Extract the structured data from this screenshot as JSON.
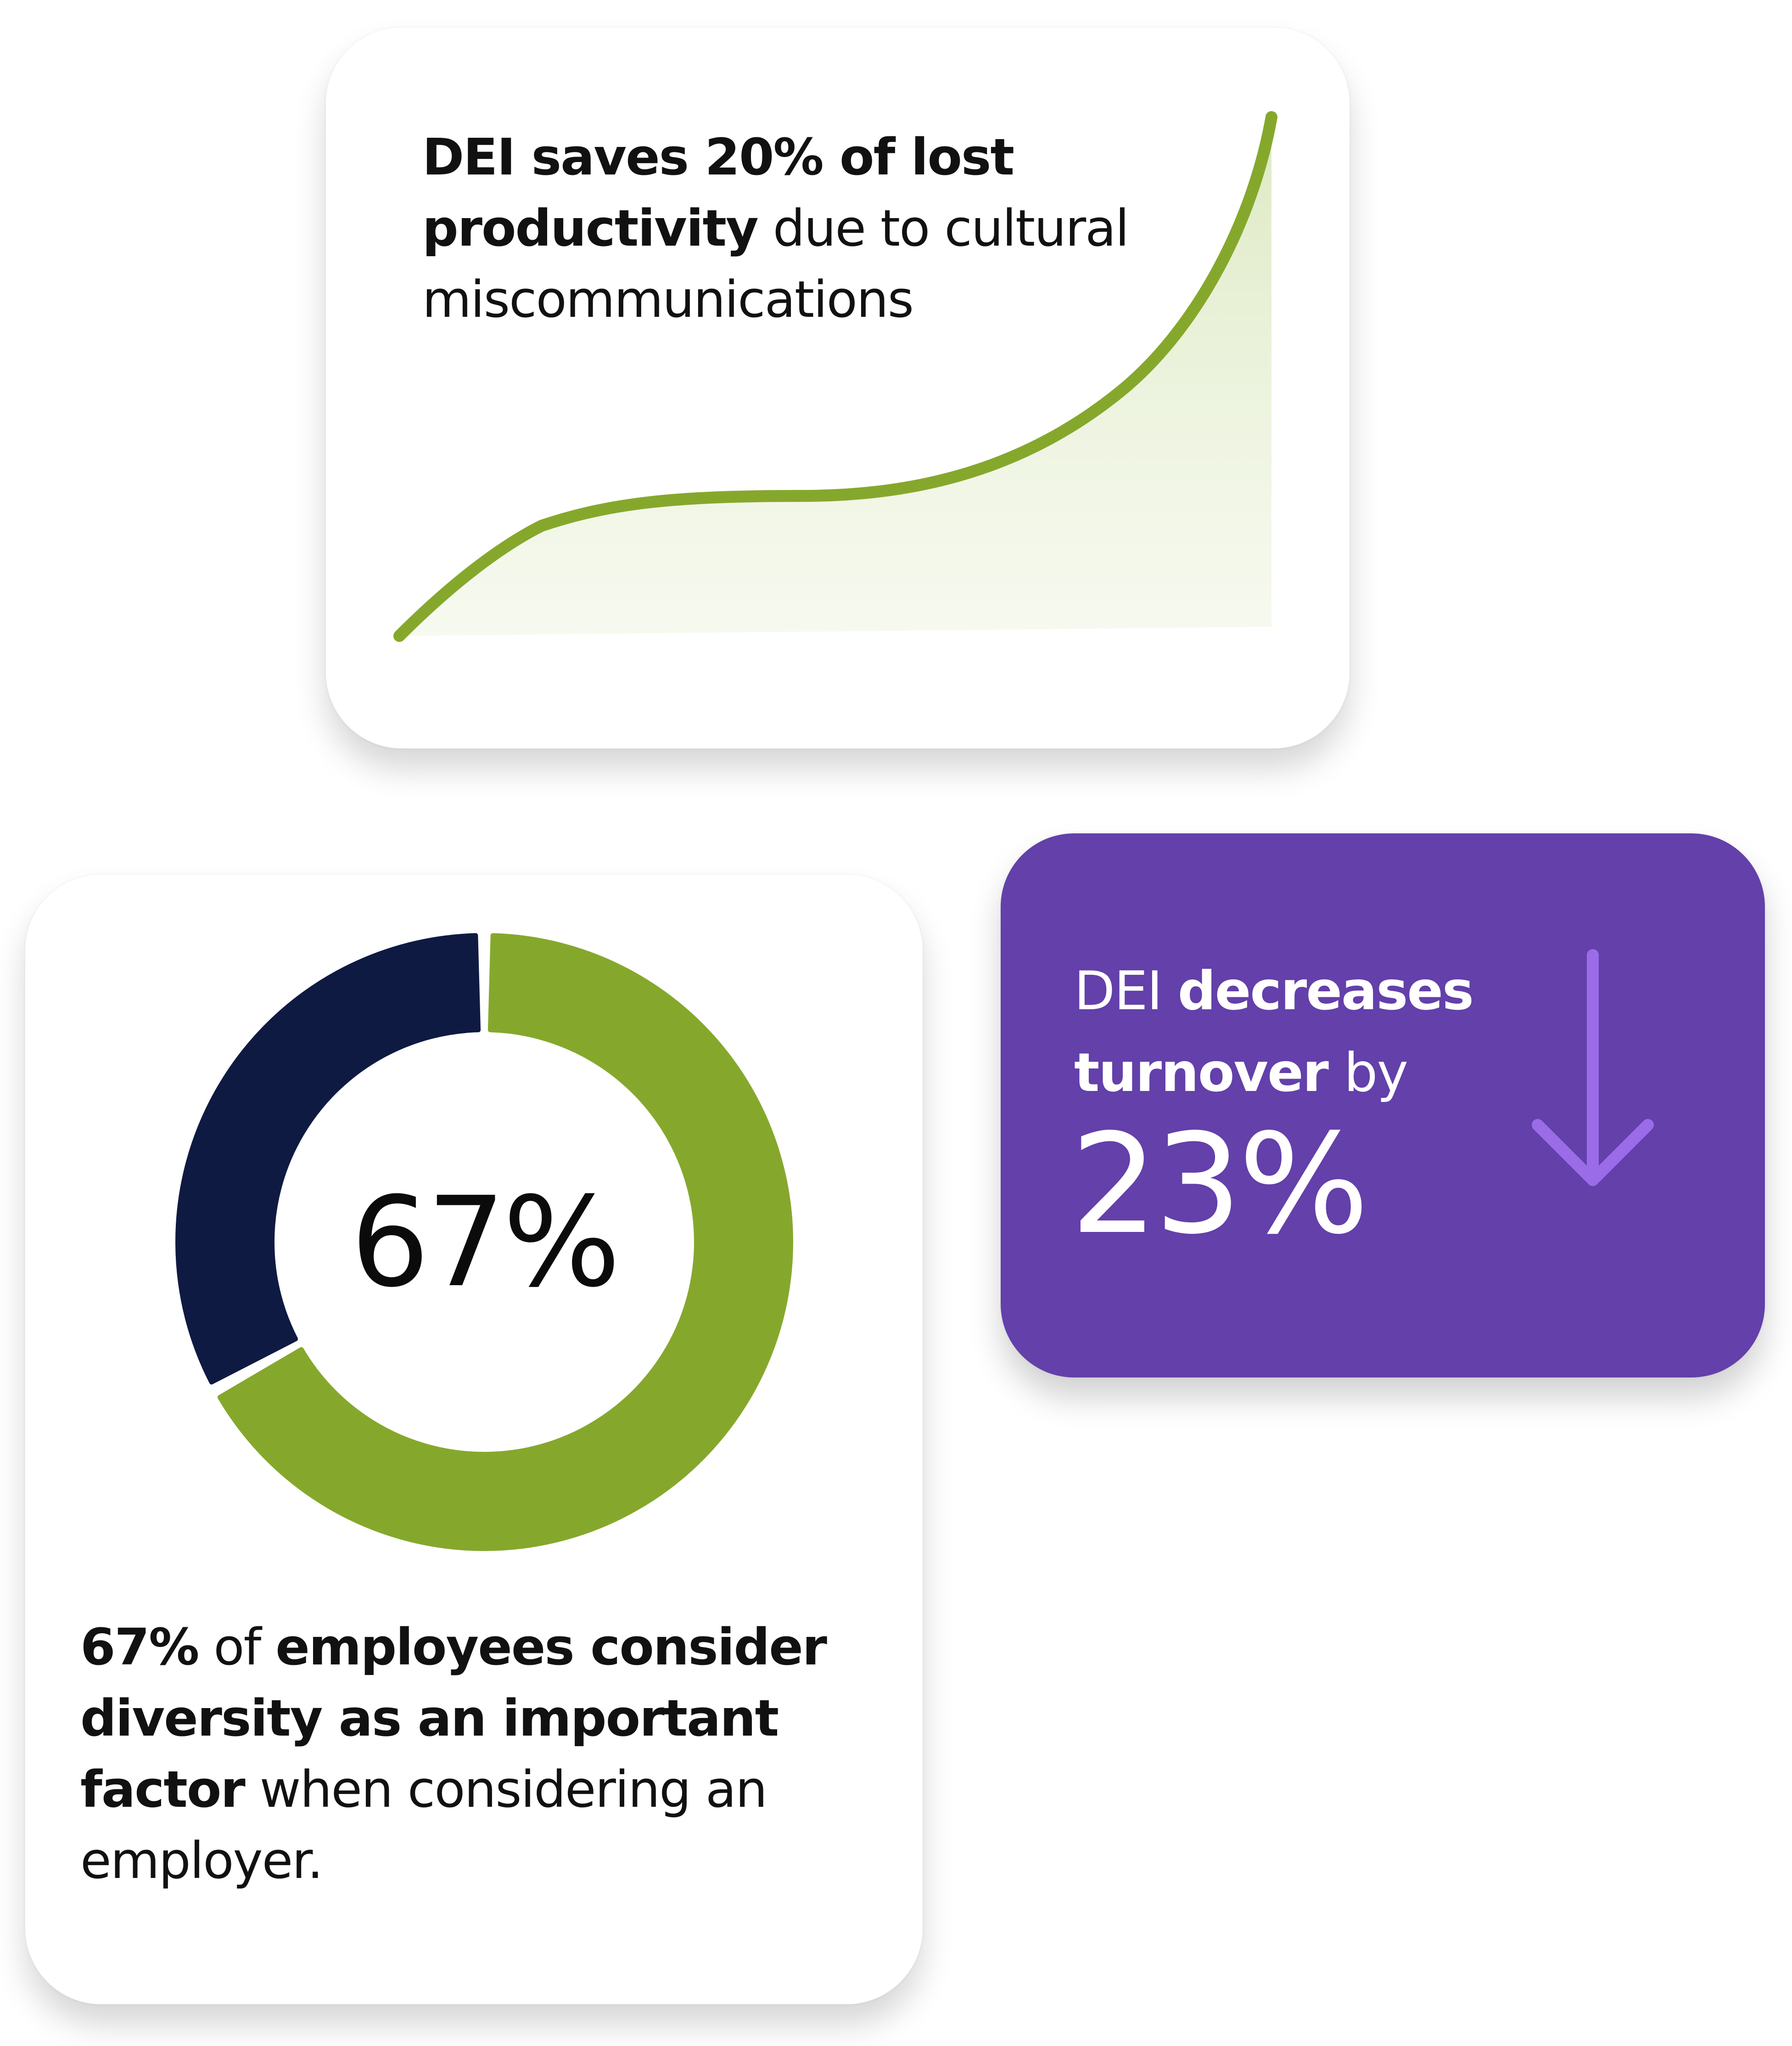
{
  "productivity_card": {
    "bold_lead": "DEI saves 20% of lost",
    "bold_continued": "productivity",
    "rest": " due to cultural miscommunications",
    "curve_color": "#85a82c",
    "fill_color": "#dbe8bf"
  },
  "diversity_card": {
    "donut": {
      "center_label": "67%",
      "value_percent": 67,
      "primary_color": "#85a82c",
      "remainder_color": "#0f1a42"
    },
    "bold_lead": "67%",
    "plain_1": " of ",
    "bold_2": "employees consider diversity as an important factor",
    "plain_3": " when considering an employer."
  },
  "turnover_card": {
    "plain_lead": "DEI ",
    "bold_1": "decreases turnover",
    "plain_2": " by",
    "value": "23%",
    "background_color": "#6340aa",
    "arrow_color": "#9b6ce8",
    "icon": "arrow-down-icon"
  }
}
